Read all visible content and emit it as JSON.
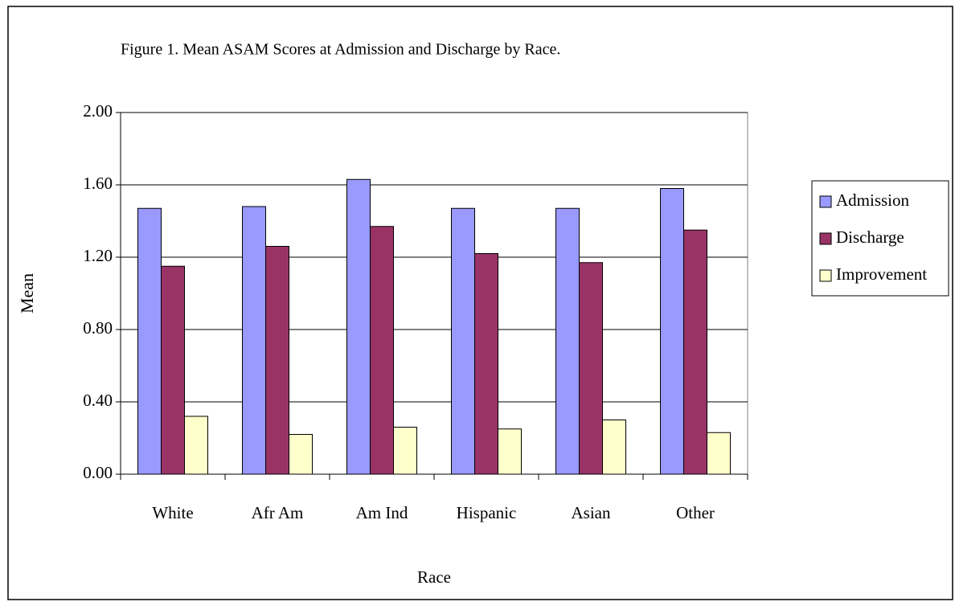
{
  "chart_data": {
    "type": "bar",
    "title": "Figure 1. Mean ASAM Scores at Admission and Discharge by Race.",
    "x_label": "Race",
    "y_label": "Mean",
    "categories": [
      "White",
      "Afr Am",
      "Am Ind",
      "Hispanic",
      "Asian",
      "Other"
    ],
    "series": [
      {
        "name": "Admission",
        "color": "#9999ff",
        "values": [
          1.47,
          1.48,
          1.63,
          1.47,
          1.47,
          1.58
        ]
      },
      {
        "name": "Discharge",
        "color": "#993366",
        "values": [
          1.15,
          1.26,
          1.37,
          1.22,
          1.17,
          1.35
        ]
      },
      {
        "name": "Improvement",
        "color": "#ffffcc",
        "values": [
          0.32,
          0.22,
          0.26,
          0.25,
          0.3,
          0.23
        ]
      }
    ],
    "ylim": [
      0,
      2
    ],
    "yticks": [
      {
        "value": 0,
        "label": "0.00"
      },
      {
        "value": 0.4,
        "label": "0.40"
      },
      {
        "value": 0.8,
        "label": "0.80"
      },
      {
        "value": 1.2,
        "label": "1.20"
      },
      {
        "value": 1.6,
        "label": "1.60"
      },
      {
        "value": 2,
        "label": "2.00"
      }
    ],
    "grid": true,
    "legend": "right"
  }
}
